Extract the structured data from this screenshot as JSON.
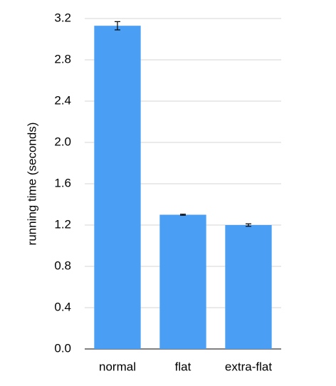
{
  "chart_data": {
    "type": "bar",
    "y_label": "running time (seconds)",
    "categories": [
      "normal",
      "flat",
      "extra-flat"
    ],
    "values": [
      3.13,
      1.3,
      1.2
    ],
    "errors": [
      0.04,
      0.005,
      0.012
    ],
    "color": "#4a9ff5",
    "ylim": [
      0,
      3.2
    ],
    "yticks": [
      {
        "value": 0,
        "label": "0.0"
      },
      0.4,
      0.8,
      1.2,
      1.6,
      {
        "value": 2,
        "label": "2.0"
      },
      2.4,
      2.8,
      3.2
    ],
    "grid": true
  }
}
